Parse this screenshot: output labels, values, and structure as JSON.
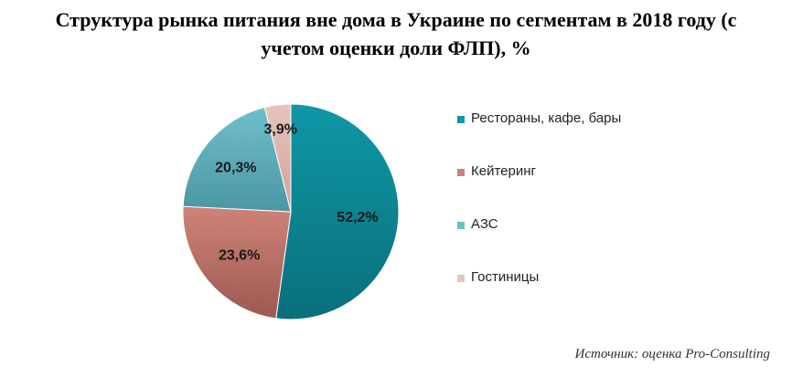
{
  "title_lines": [
    "Структура рынка питания вне дома в Украине по сегментам в 2018 году (с",
    "учетом оценки доли ФЛП), %"
  ],
  "source": "Источник: оценка Pro-Consulting",
  "chart_data": {
    "type": "pie",
    "title": "Структура рынка питания вне дома в Украине по сегментам в 2018 году (с учетом оценки доли ФЛП), %",
    "legend_position": "right",
    "slices": [
      {
        "name": "Рестораны, кафе, бары",
        "value": 52.2,
        "label": "52,2%",
        "color": "#0f97a6",
        "shade": "#0a6f7b"
      },
      {
        "name": "Кейтеринг",
        "value": 23.6,
        "label": "23,6%",
        "color": "#cf8378",
        "shade": "#9c5a52"
      },
      {
        "name": "АЗС",
        "value": 20.3,
        "label": "20,3%",
        "color": "#6fbfcb",
        "shade": "#4b96a3"
      },
      {
        "name": "Гостиницы",
        "value": 3.9,
        "label": "3,9%",
        "color": "#e8c3bd",
        "shade": "#cfa39c"
      }
    ]
  }
}
